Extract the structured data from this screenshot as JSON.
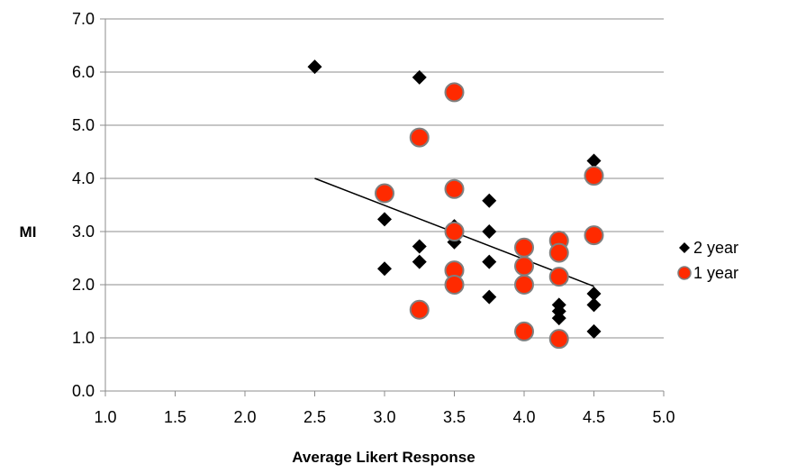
{
  "chart_data": {
    "type": "scatter",
    "title": "",
    "xlabel": "Average Likert Response",
    "ylabel": "MI",
    "xlim": [
      1.0,
      5.0
    ],
    "ylim": [
      0.0,
      7.0
    ],
    "x_ticks": [
      "1.0",
      "1.5",
      "2.0",
      "2.5",
      "3.0",
      "3.5",
      "4.0",
      "4.5",
      "5.0"
    ],
    "y_ticks": [
      "0.0",
      "1.0",
      "2.0",
      "3.0",
      "4.0",
      "5.0",
      "6.0",
      "7.0"
    ],
    "grid": "horizontal",
    "legend_position": "right",
    "series": [
      {
        "name": "2 year",
        "marker": "diamond",
        "color": "#000000",
        "points": [
          [
            2.5,
            6.1
          ],
          [
            3.25,
            5.9
          ],
          [
            3.0,
            3.23
          ],
          [
            3.0,
            2.3
          ],
          [
            3.25,
            2.72
          ],
          [
            3.25,
            2.43
          ],
          [
            3.5,
            3.1
          ],
          [
            3.5,
            2.8
          ],
          [
            3.5,
            2.0
          ],
          [
            3.75,
            3.58
          ],
          [
            3.75,
            3.0
          ],
          [
            3.75,
            2.43
          ],
          [
            3.75,
            1.77
          ],
          [
            4.25,
            1.62
          ],
          [
            4.25,
            1.5
          ],
          [
            4.25,
            1.37
          ],
          [
            4.5,
            4.33
          ],
          [
            4.5,
            1.83
          ],
          [
            4.5,
            1.62
          ],
          [
            4.5,
            1.12
          ]
        ]
      },
      {
        "name": "1 year",
        "marker": "circle",
        "color": "#ff2a00",
        "stroke": "#7f7f7f",
        "points": [
          [
            3.0,
            3.72
          ],
          [
            3.25,
            4.77
          ],
          [
            3.25,
            1.53
          ],
          [
            3.5,
            5.62
          ],
          [
            3.5,
            3.8
          ],
          [
            3.5,
            3.0
          ],
          [
            3.5,
            2.27
          ],
          [
            3.5,
            2.0
          ],
          [
            4.0,
            2.7
          ],
          [
            4.0,
            2.35
          ],
          [
            4.0,
            2.0
          ],
          [
            4.0,
            1.12
          ],
          [
            4.25,
            2.83
          ],
          [
            4.25,
            2.6
          ],
          [
            4.25,
            2.15
          ],
          [
            4.25,
            0.98
          ],
          [
            4.5,
            4.05
          ],
          [
            4.5,
            2.93
          ]
        ]
      }
    ],
    "trendline": {
      "x": [
        2.5,
        4.5
      ],
      "y": [
        4.0,
        1.97
      ],
      "color": "#000000"
    }
  }
}
